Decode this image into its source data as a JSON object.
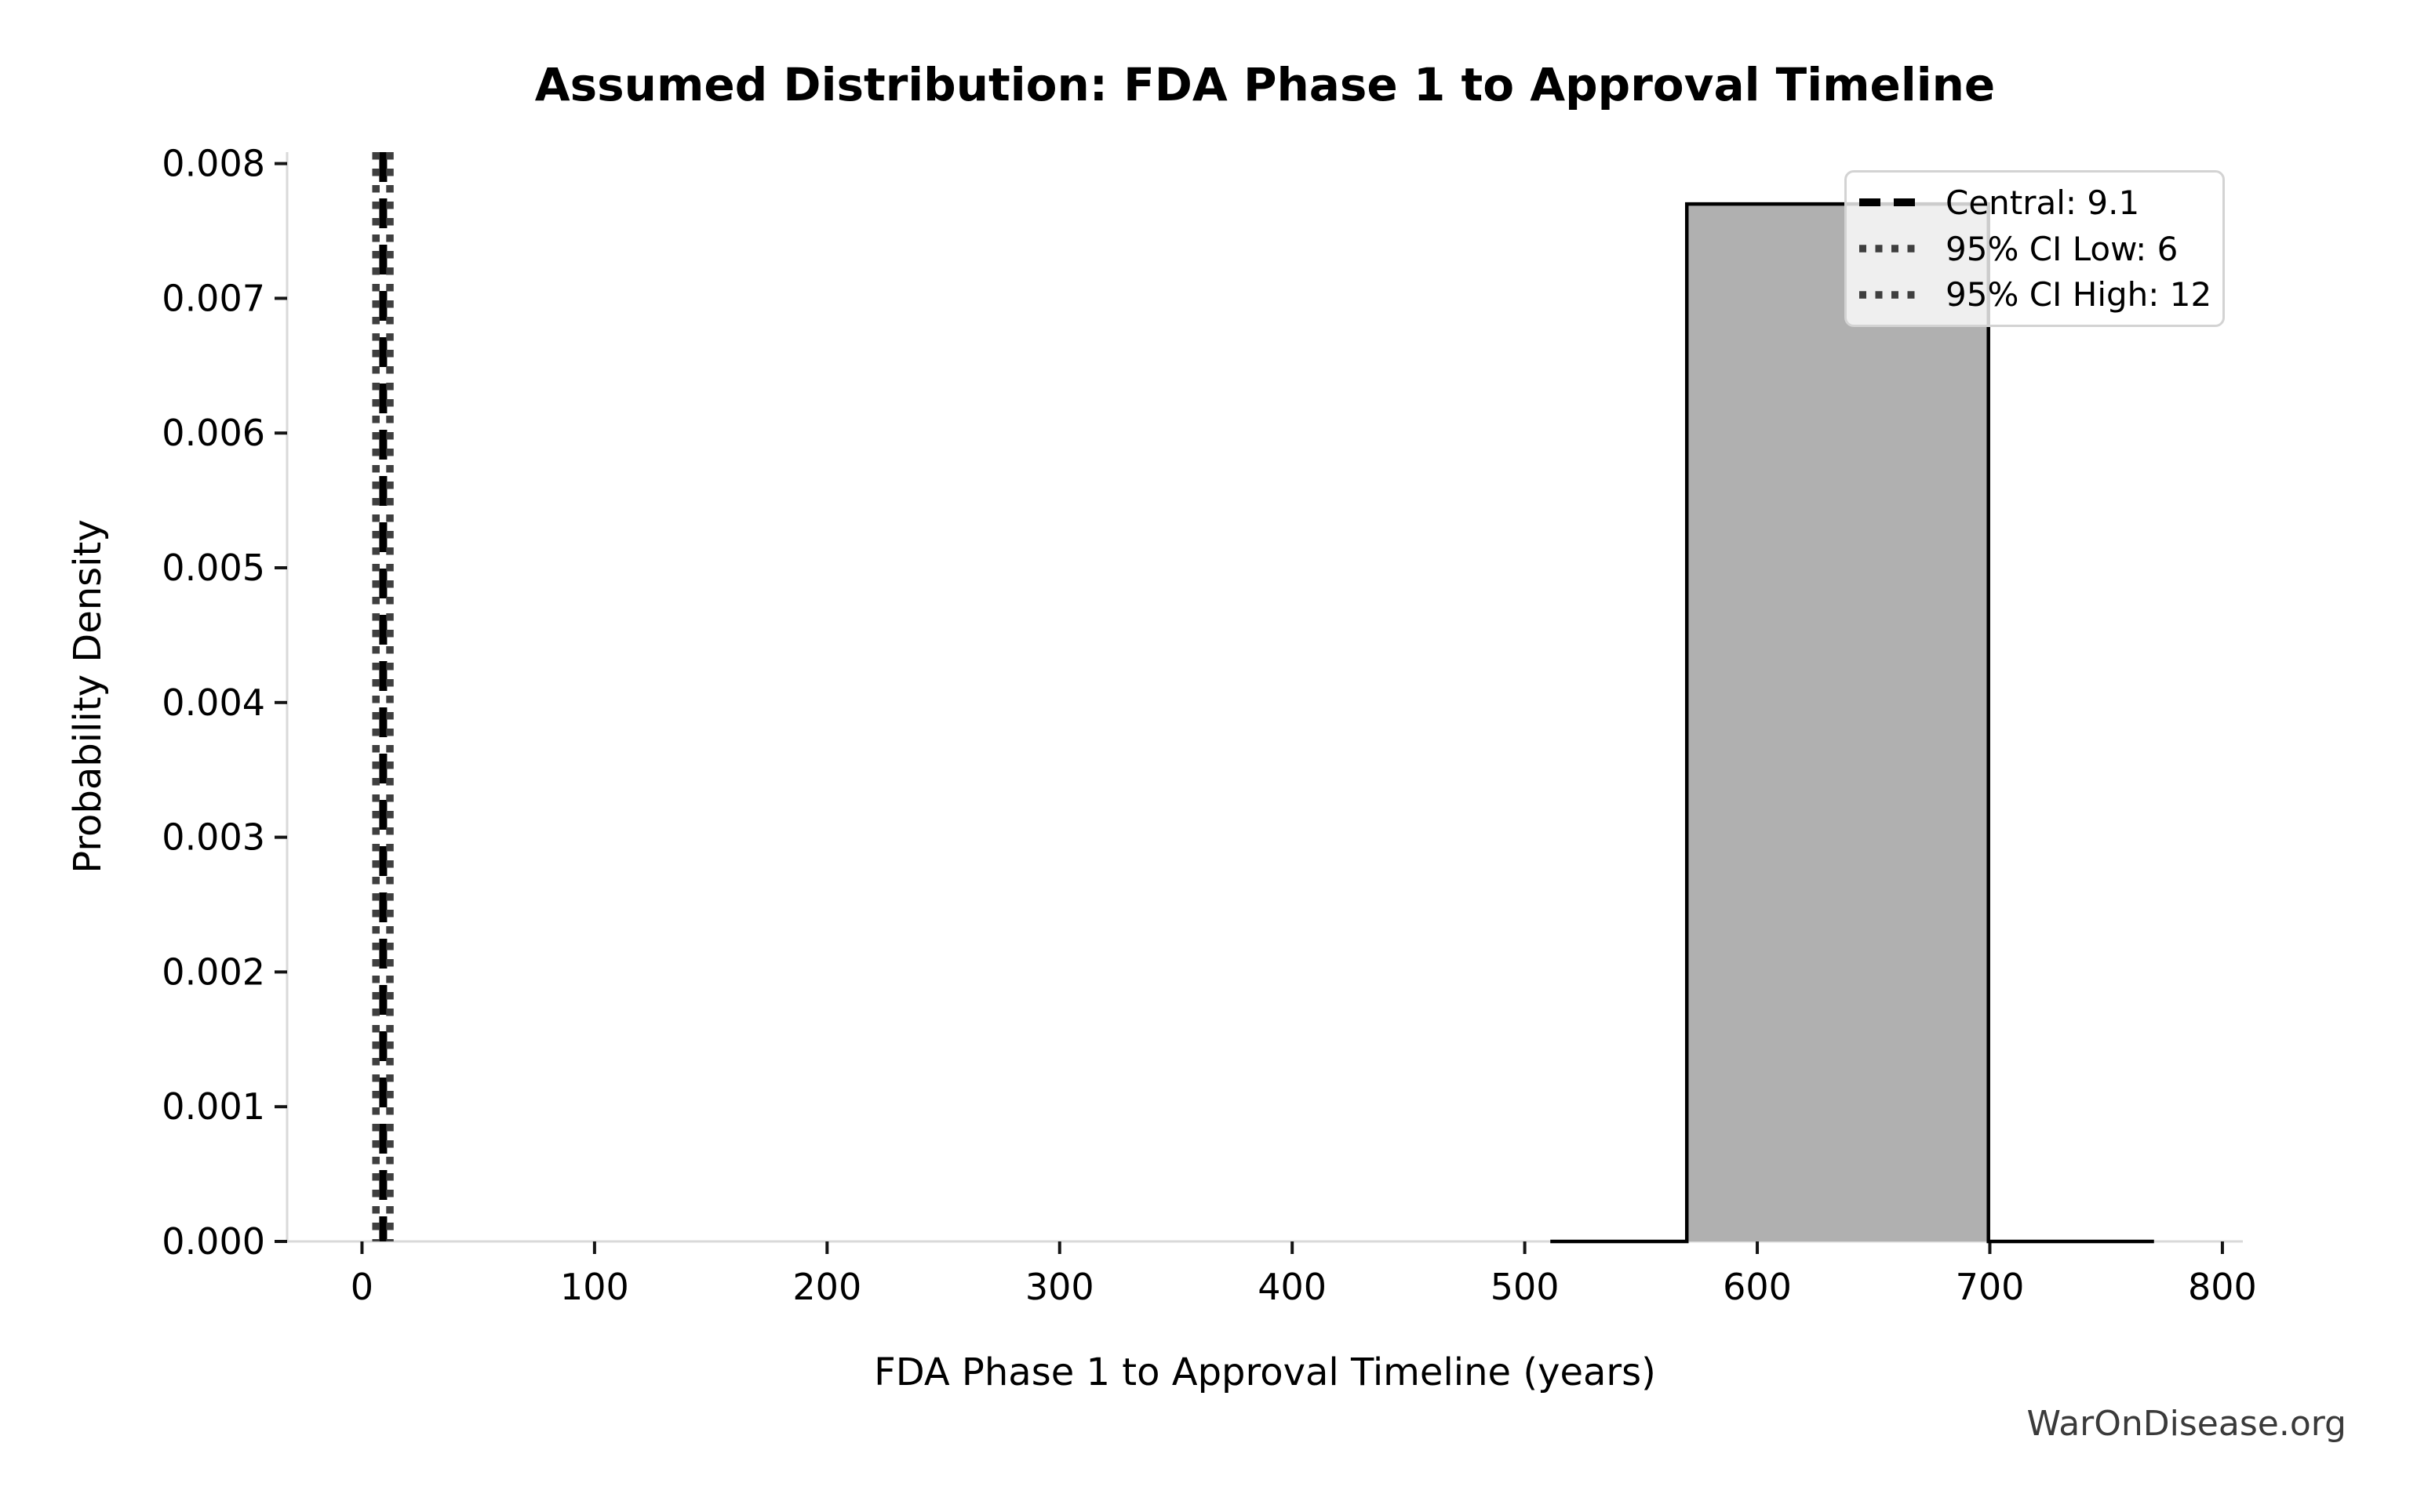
{
  "watermark": "WarOnDisease.org",
  "chart_data": {
    "type": "bar",
    "title": "Assumed Distribution: FDA Phase 1 to Approval Timeline",
    "xlabel": "FDA Phase 1 to Approval Timeline (years)",
    "ylabel": "Probability Density",
    "xlim": [
      -32.2,
      808.8
    ],
    "ylim": [
      0,
      0.008085
    ],
    "grid": false,
    "legend_position": "upper right",
    "xticks": [
      0,
      100,
      200,
      300,
      400,
      500,
      600,
      700,
      800
    ],
    "yticks": [
      0,
      0.001,
      0.002,
      0.003,
      0.004,
      0.005,
      0.006,
      0.007,
      0.008
    ],
    "ytick_labels": [
      "0.000",
      "0.001",
      "0.002",
      "0.003",
      "0.004",
      "0.005",
      "0.006",
      "0.007",
      "0.008"
    ],
    "histogram": {
      "fill_color": "#b0b0b0",
      "edge_color": "#000000",
      "segments": [
        {
          "x_start": 511.0,
          "x_end": 569.7,
          "density": 0
        },
        {
          "x_start": 569.7,
          "x_end": 699.4,
          "density": 0.0077
        },
        {
          "x_start": 699.4,
          "x_end": 770.6,
          "density": 0
        }
      ]
    },
    "vlines": [
      {
        "label": "Central: 9.1",
        "x": 9.1,
        "style": "dashed",
        "color": "#000000"
      },
      {
        "label": "95% CI Low: 6",
        "x": 6,
        "style": "dotted",
        "color": "#3f3f3f"
      },
      {
        "label": "95% CI High: 12",
        "x": 12,
        "style": "dotted",
        "color": "#3f3f3f"
      }
    ]
  }
}
